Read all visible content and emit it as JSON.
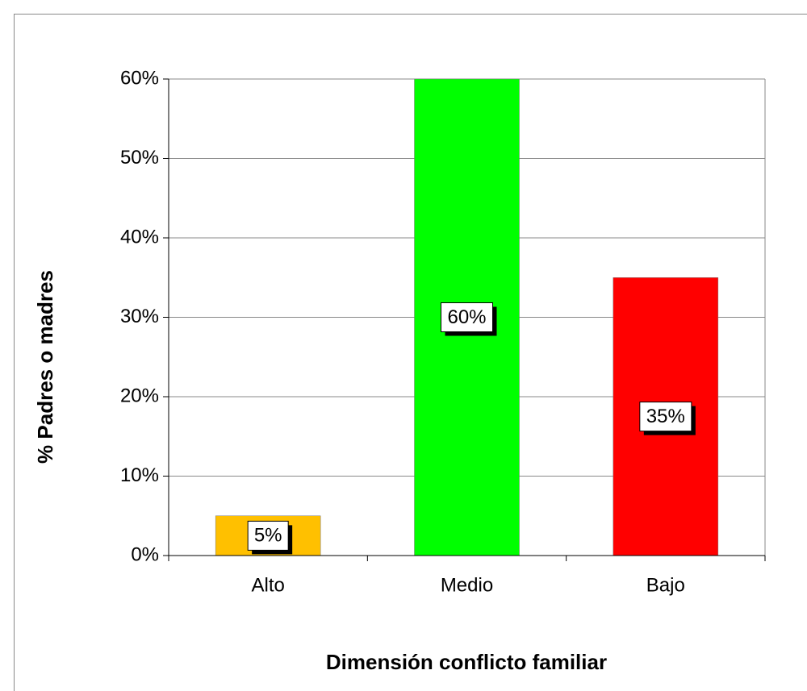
{
  "chart_data": {
    "type": "bar",
    "categories": [
      "Alto",
      "Medio",
      "Bajo"
    ],
    "values": [
      5,
      60,
      35
    ],
    "value_labels": [
      "5%",
      "60%",
      "35%"
    ],
    "colors": [
      "#ffc000",
      "#00ff00",
      "#ff0000"
    ],
    "ylabel": "% Padres o madres",
    "xlabel": "Dimensión conflicto familiar",
    "ylim": [
      0,
      60
    ],
    "yticks": [
      {
        "value": 0,
        "label": "0%"
      },
      {
        "value": 10,
        "label": "10%"
      },
      {
        "value": 20,
        "label": "20%"
      },
      {
        "value": 30,
        "label": "30%"
      },
      {
        "value": 40,
        "label": "40%"
      },
      {
        "value": 50,
        "label": "50%"
      },
      {
        "value": 60,
        "label": "60%"
      }
    ],
    "grid": true
  }
}
